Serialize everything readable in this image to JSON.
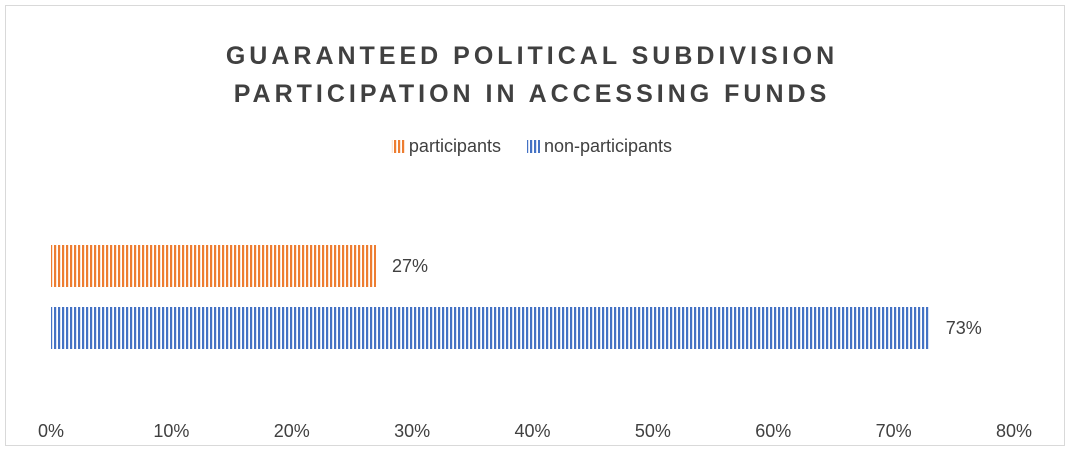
{
  "chart_data": {
    "type": "bar",
    "orientation": "horizontal",
    "title_lines": [
      "GUARANTEED POLITICAL SUBDIVISION",
      "PARTICIPATION IN ACCESSING FUNDS"
    ],
    "series": [
      {
        "name": "participants",
        "values": [
          27
        ],
        "label": "27%",
        "color": "#ed7d31"
      },
      {
        "name": "non-participants",
        "values": [
          73
        ],
        "label": "73%",
        "color": "#4472c4"
      }
    ],
    "xlim": [
      0,
      80
    ],
    "xticks": [
      {
        "value": 0,
        "label": "0%"
      },
      {
        "value": 10,
        "label": "10%"
      },
      {
        "value": 20,
        "label": "20%"
      },
      {
        "value": 30,
        "label": "30%"
      },
      {
        "value": 40,
        "label": "40%"
      },
      {
        "value": 50,
        "label": "50%"
      },
      {
        "value": 60,
        "label": "60%"
      },
      {
        "value": 70,
        "label": "70%"
      },
      {
        "value": 80,
        "label": "80%"
      }
    ],
    "bar_pattern": "vertical-stripes",
    "grid": false,
    "legend_position": "top"
  }
}
